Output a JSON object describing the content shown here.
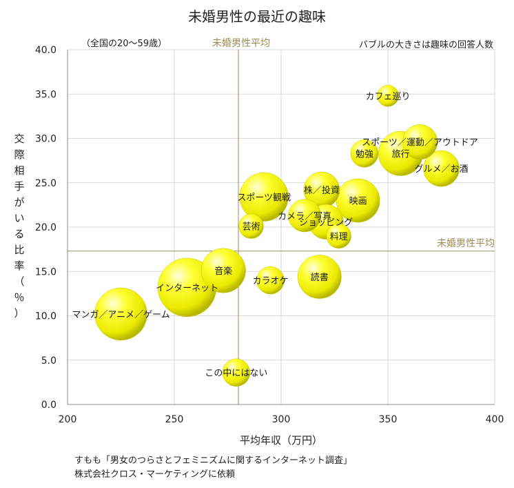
{
  "chart_data": {
    "type": "scatter",
    "title": "未婚男性の最近の趣味",
    "xlabel": "平均年収（万円）",
    "ylabel": "交際相手がいる比率（％）",
    "xlim": [
      200,
      400
    ],
    "ylim": [
      0,
      40
    ],
    "x_ticks": [
      "200",
      "250",
      "300",
      "350",
      "400"
    ],
    "y_ticks": [
      "0.0",
      "5.0",
      "10.0",
      "15.0",
      "20.0",
      "25.0",
      "30.0",
      "35.0",
      "40.0"
    ],
    "grid": true,
    "note_left": "（全国の20～59歳）",
    "note_right": "バブルの大きさは趣味の回答人数",
    "avg_x": 280,
    "avg_y": 17.3,
    "avg_x_label": "未婚男性平均",
    "avg_y_label": "未婚男性平均",
    "bubble_color": "#f5f500",
    "avg_line_color": "#a08a56",
    "source_lines": [
      "すもも「男女のつらさとフェミニズムに関するインターネット調査」",
      "株式会社クロス・マーケティングに依頼"
    ],
    "points": [
      {
        "label": "カフェ巡り",
        "x": 350,
        "y": 34.8,
        "size": 0.6
      },
      {
        "label": "スポーツ／運動／アウトドア",
        "x": 365,
        "y": 29.6,
        "size": 1.6
      },
      {
        "label": "勉強",
        "x": 339,
        "y": 28.3,
        "size": 1.0
      },
      {
        "label": "旅行",
        "x": 356,
        "y": 28.3,
        "size": 2.6
      },
      {
        "label": "グルメ／お酒",
        "x": 375,
        "y": 26.6,
        "size": 1.7
      },
      {
        "label": "スポーツ観戦",
        "x": 292,
        "y": 23.4,
        "size": 3.1
      },
      {
        "label": "株／投資",
        "x": 319,
        "y": 24.2,
        "size": 1.7
      },
      {
        "label": "映画",
        "x": 336,
        "y": 23.0,
        "size": 2.5
      },
      {
        "label": "カメラ／写真",
        "x": 311,
        "y": 21.3,
        "size": 1.4
      },
      {
        "label": "ショッピング",
        "x": 321,
        "y": 20.6,
        "size": 1.6
      },
      {
        "label": "芸術",
        "x": 286,
        "y": 20.1,
        "size": 0.8
      },
      {
        "label": "料理",
        "x": 327,
        "y": 19.0,
        "size": 0.8
      },
      {
        "label": "音楽",
        "x": 273,
        "y": 15.1,
        "size": 2.6
      },
      {
        "label": "インターネット",
        "x": 256,
        "y": 13.2,
        "size": 4.5
      },
      {
        "label": "カラオケ",
        "x": 295,
        "y": 14.0,
        "size": 1.0
      },
      {
        "label": "読書",
        "x": 318,
        "y": 14.4,
        "size": 2.5
      },
      {
        "label": "マンガ／アニメ／ゲーム",
        "x": 225,
        "y": 10.2,
        "size": 3.6
      },
      {
        "label": "この中にはない",
        "x": 279,
        "y": 3.6,
        "size": 1.0
      }
    ]
  }
}
